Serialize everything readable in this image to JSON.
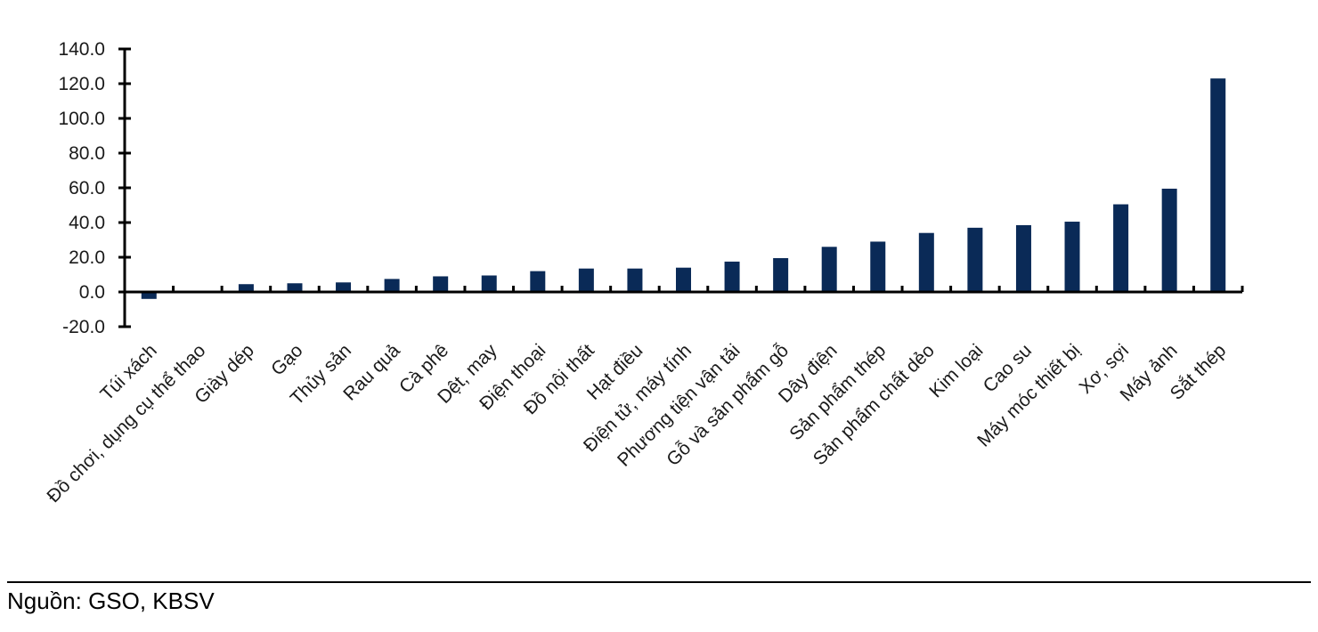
{
  "chart_data": {
    "type": "bar",
    "title": "",
    "xlabel": "",
    "ylabel": "",
    "ylim": [
      -20,
      140
    ],
    "yticks": [
      140,
      120,
      100,
      80,
      60,
      40,
      20,
      0,
      -20
    ],
    "ytick_labels": [
      "140.0",
      "120.0",
      "100.0",
      "80.0",
      "60.0",
      "40.0",
      "20.0",
      "0.0",
      "-20.0"
    ],
    "grid": false,
    "bar_color": "#0a2a57",
    "categories": [
      "Túi xách",
      "Đồ chơi, dụng cụ thể thao",
      "Giày dép",
      "Gạo",
      "Thủy sản",
      "Rau quả",
      "Cà phê",
      "Dệt, may",
      "Điện thoại",
      "Đồ nội thất",
      "Hạt điều",
      "Điện tử, máy tính",
      "Phương tiện vận tải",
      "Gỗ và sản phẩm gỗ",
      "Dây điện",
      "Sản phẩm thép",
      "Sản phẩm chất dẻo",
      "Kim loại",
      "Cao su",
      "Máy móc thiết bị",
      "Xơ, sợi",
      "Máy ảnh",
      "Sắt thép"
    ],
    "values": [
      -4.0,
      0.0,
      4.5,
      5.0,
      5.5,
      7.5,
      9.0,
      9.5,
      12.0,
      13.5,
      13.5,
      14.0,
      17.5,
      19.5,
      26.0,
      29.0,
      34.0,
      37.0,
      38.5,
      40.5,
      50.5,
      59.5,
      123.0
    ]
  },
  "source": "Nguồn: GSO, KBSV"
}
